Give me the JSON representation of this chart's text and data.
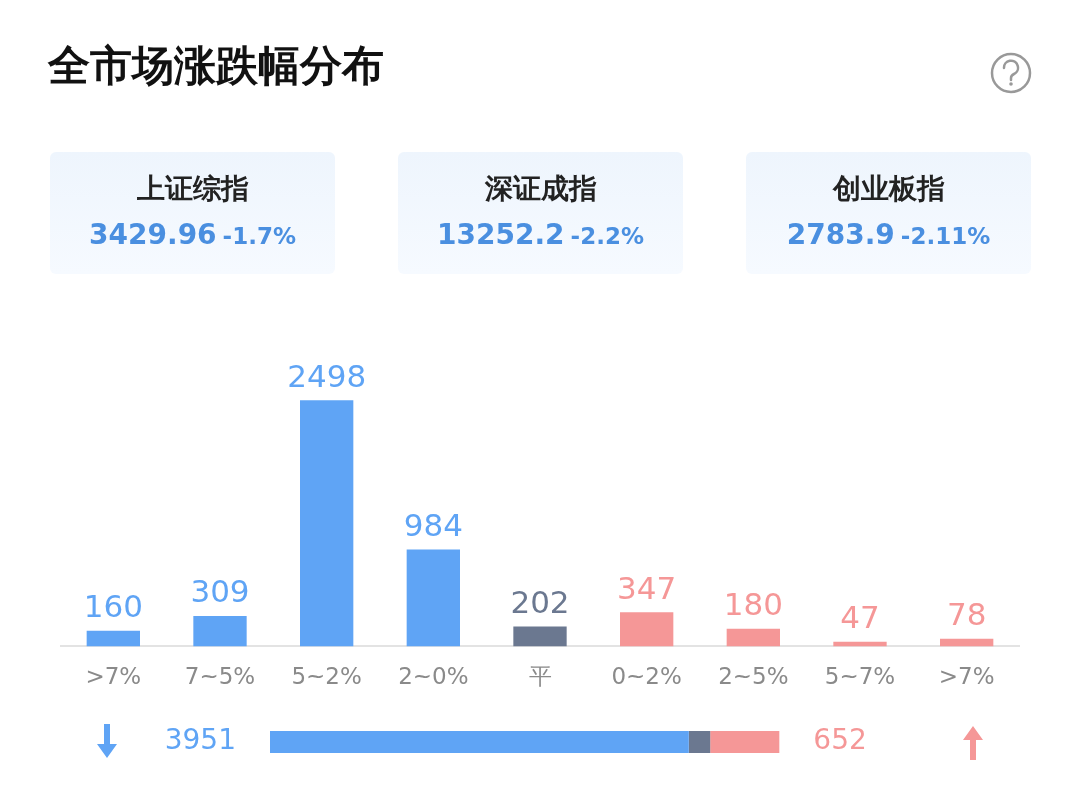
{
  "chart_data": [
    {
      "type": "other",
      "title": "全市场涨跌幅分布",
      "annotations": [
        "上证综指",
        "3429.96",
        "-1.7%",
        "深证成指",
        "13252.2",
        "-2.2%",
        "创业板指",
        "2783.9",
        "-2.11%"
      ]
    },
    {
      "type": "bar",
      "categories": [
        ">7%",
        "7~5%",
        "5~2%",
        "2~0%",
        "平",
        "0~2%",
        "2~5%",
        "5~7%",
        ">7%"
      ],
      "values": [
        160,
        309,
        2498,
        984,
        202,
        347,
        180,
        47,
        78
      ],
      "colors": [
        "#5fa4f5",
        "#5fa4f5",
        "#5fa4f5",
        "#5fa4f5",
        "#6b7890",
        "#f59797",
        "#f59797",
        "#f59797",
        "#f59797"
      ],
      "data_labels": true,
      "tick_labels": "x",
      "legend": false
    },
    {
      "type": "bar",
      "orientation": "horizontal",
      "stacked": true,
      "categories": [
        null
      ],
      "legend": false,
      "tick_labels": false,
      "series": [
        {
          "color": "#5fa4f5",
          "values": [
            3951
          ],
          "value_labels": [
            "3951"
          ]
        },
        {
          "color": "#6b7890",
          "values": [
            202
          ]
        },
        {
          "color": "#f59797",
          "values": [
            652
          ],
          "value_labels": [
            "652"
          ]
        }
      ]
    }
  ]
}
